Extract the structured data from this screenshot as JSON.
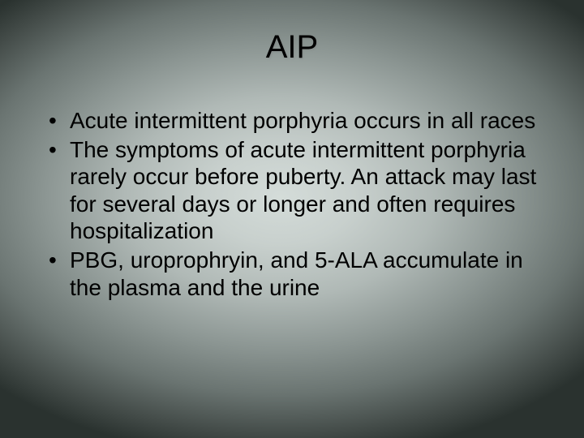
{
  "slide": {
    "title": "AIP",
    "bullets": [
      "Acute intermittent porphyria occurs in all races",
      "The symptoms of acute intermittent porphyria rarely occur before puberty. An attack may last for several days or longer and often requires hospitalization",
      "PBG, uroprophryin, and 5-ALA accumulate in the plasma and the urine"
    ],
    "colors": {
      "text": "#000000",
      "bg_center": "#d4dcd9",
      "bg_edge": "#2a322f"
    },
    "typography": {
      "title_fontsize": 40,
      "body_fontsize": 28,
      "font_family": "Arial"
    }
  }
}
